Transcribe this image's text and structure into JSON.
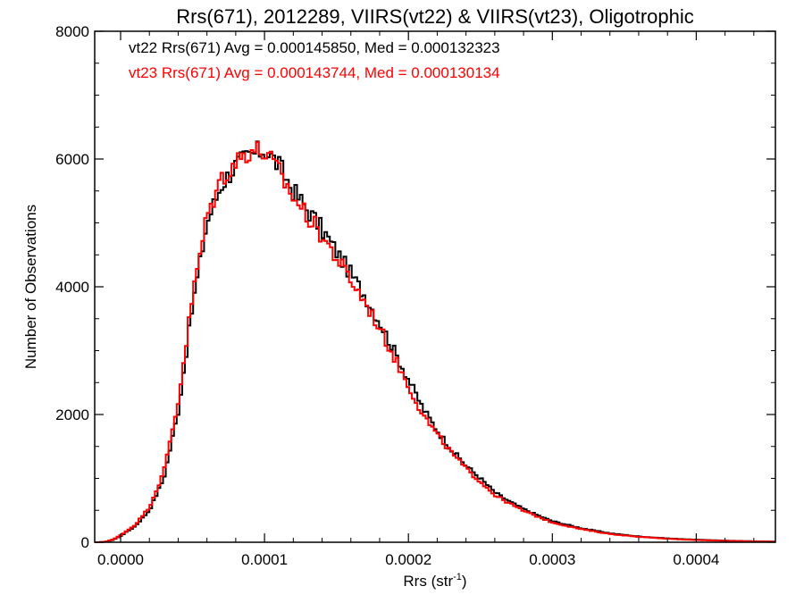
{
  "chart_data": {
    "type": "line",
    "step": true,
    "title": "Rrs(671), 2012289, VIIRS(vt22) & VIIRS(vt23), Oligotrophic",
    "xlabel_main": "Rrs (str",
    "xlabel_sup": "-1",
    "xlabel_close": ")",
    "ylabel": "Number of Observations",
    "xlim": [
      -1.8e-05,
      0.000455
    ],
    "ylim": [
      0,
      8000
    ],
    "x_ticks": [
      0.0,
      0.0001,
      0.0002,
      0.0003,
      0.0004
    ],
    "x_tick_labels": [
      "0.0000",
      "0.0001",
      "0.0002",
      "0.0003",
      "0.0004"
    ],
    "y_ticks": [
      0,
      2000,
      4000,
      6000,
      8000
    ],
    "y_tick_labels": [
      "0",
      "2000",
      "4000",
      "6000",
      "8000"
    ],
    "grid": false,
    "annotations": [
      {
        "text": "vt22 Rrs(671) Avg = 0.000145850, Med = 0.000132323",
        "color": "#000000"
      },
      {
        "text": "vt23 Rrs(671) Avg = 0.000143744, Med = 0.000130134",
        "color": "#ff0000"
      }
    ],
    "x": [
      -1.5e-05,
      -1e-05,
      -5e-06,
      0.0,
      1e-05,
      2e-05,
      3e-05,
      4e-05,
      5e-05,
      6e-05,
      7e-05,
      8e-05,
      9e-05,
      0.0001,
      0.00011,
      0.00012,
      0.00013,
      0.00014,
      0.00015,
      0.00016,
      0.00017,
      0.00018,
      0.00019,
      0.0002,
      0.00021,
      0.00022,
      0.00023,
      0.00024,
      0.00025,
      0.00026,
      0.00027,
      0.00028,
      0.00029,
      0.0003,
      0.00032,
      0.00034,
      0.00036,
      0.00038,
      0.0004,
      0.00042,
      0.00044,
      0.000455
    ],
    "series": [
      {
        "name": "vt22",
        "color": "#000000",
        "y": [
          0,
          10,
          40,
          100,
          250,
          500,
          1000,
          2050,
          3700,
          5000,
          5600,
          5900,
          6050,
          6150,
          5900,
          5500,
          5200,
          4900,
          4550,
          4200,
          3850,
          3450,
          3000,
          2550,
          2100,
          1750,
          1450,
          1200,
          1000,
          780,
          640,
          520,
          420,
          330,
          220,
          140,
          90,
          60,
          40,
          25,
          15,
          10
        ]
      },
      {
        "name": "vt23",
        "color": "#ff0000",
        "y": [
          0,
          10,
          45,
          110,
          270,
          550,
          1100,
          2200,
          3850,
          5100,
          5700,
          5950,
          6150,
          6100,
          5800,
          5400,
          5100,
          4800,
          4450,
          4100,
          3750,
          3350,
          2900,
          2450,
          2000,
          1680,
          1400,
          1150,
          950,
          740,
          610,
          490,
          400,
          310,
          205,
          130,
          85,
          55,
          35,
          22,
          14,
          8
        ]
      }
    ]
  }
}
